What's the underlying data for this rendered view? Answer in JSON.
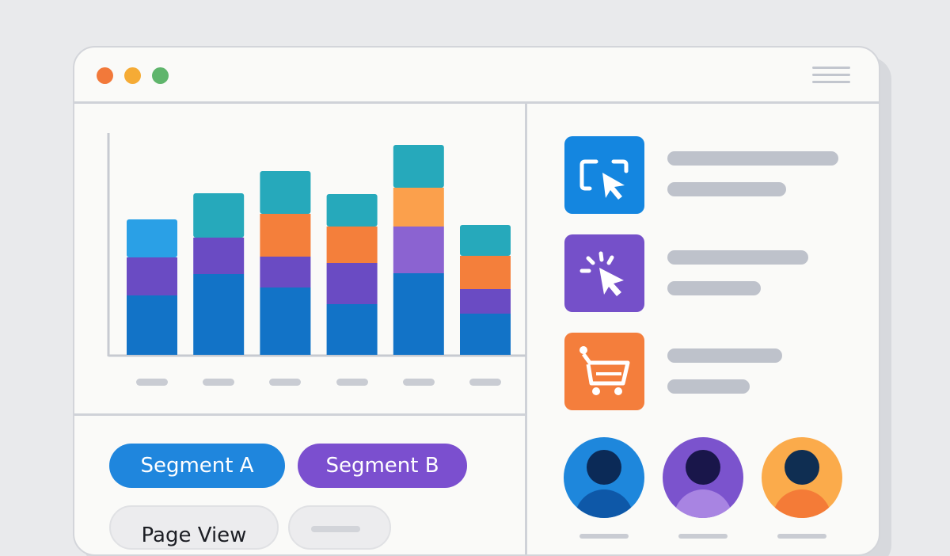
{
  "window": {
    "controls": [
      {
        "name": "close",
        "color": "#f2793a"
      },
      {
        "name": "minimize",
        "color": "#f5ab35"
      },
      {
        "name": "maximize",
        "color": "#5fb56c"
      }
    ],
    "menu_icon": "hamburger-menu-icon"
  },
  "chart_data": {
    "type": "bar",
    "stacked": true,
    "categories": [
      "",
      "",
      "",
      "",
      "",
      ""
    ],
    "series": [
      {
        "color": "#1273c7",
        "values": [
          75,
          102,
          85,
          64,
          103,
          52
        ]
      },
      {
        "color": "#6a4bc3",
        "values": [
          48,
          46,
          39,
          52,
          0,
          31
        ]
      },
      {
        "color": "#8b63d1",
        "values": [
          0,
          0,
          0,
          0,
          59,
          0
        ]
      },
      {
        "color": "#f47f3b",
        "values": [
          0,
          0,
          54,
          46,
          0,
          42
        ]
      },
      {
        "color": "#fba04c",
        "values": [
          0,
          0,
          0,
          0,
          49,
          0
        ]
      },
      {
        "color": "#2aa0e6",
        "values": [
          48,
          0,
          0,
          0,
          0,
          0
        ]
      },
      {
        "color": "#26a9bb",
        "values": [
          0,
          56,
          54,
          41,
          54,
          39
        ]
      }
    ],
    "grid": false,
    "legend": "none"
  },
  "segments": [
    {
      "label": "Segment A",
      "color": "#1f86dd"
    },
    {
      "label": "Segment B",
      "color": "#7b4fcf"
    }
  ],
  "events": [
    {
      "label": "Page View"
    },
    {
      "label": ""
    }
  ],
  "actions": [
    {
      "icon": "screen-cursor-icon",
      "color": "#1486e0"
    },
    {
      "icon": "click-icon",
      "color": "#7550c9"
    },
    {
      "icon": "shopping-cart-icon",
      "color": "#f47e3c"
    }
  ],
  "users": [
    {
      "icon": "user-avatar-icon",
      "bg": "#1e87dc",
      "head": "#0b2a57",
      "torso": "#0e58a8"
    },
    {
      "icon": "user-avatar-icon",
      "bg": "#7b53cd",
      "head": "#19164a",
      "torso": "#a884e2"
    },
    {
      "icon": "user-avatar-icon",
      "bg": "#fbab4b",
      "head": "#0f2e52",
      "torso": "#f47b37"
    }
  ]
}
